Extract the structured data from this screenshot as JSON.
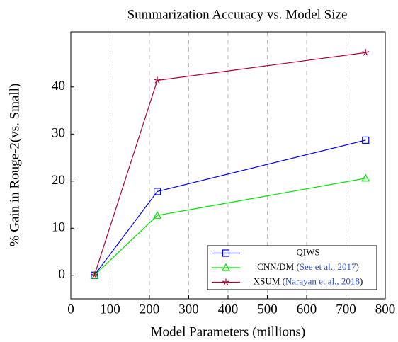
{
  "chart_data": {
    "type": "line",
    "title": "Summarization Accuracy vs. Model Size",
    "xlabel": "Model Parameters (millions)",
    "ylabel": "% Gain in Rouge-2(vs. Small)",
    "x": [
      60,
      220,
      750
    ],
    "series": [
      {
        "name": "QIWS",
        "color": "#0000ff",
        "marker": "square",
        "values": [
          0,
          17.8,
          28.7
        ]
      },
      {
        "name": "CNN/DM (See et al., 2017)",
        "color": "#00e000",
        "marker": "triangle",
        "values": [
          0,
          12.7,
          20.6
        ]
      },
      {
        "name": "XSUM (Narayan et al., 2018)",
        "color": "#b0003a",
        "marker": "star",
        "values": [
          0,
          41.4,
          47.3
        ]
      }
    ],
    "xlim": [
      0,
      800
    ],
    "xticks": [
      0,
      100,
      200,
      300,
      400,
      500,
      600,
      700,
      800
    ],
    "ylim": [
      -5,
      51.7
    ],
    "yticks": [
      0,
      10,
      20,
      30,
      40
    ],
    "grid": "x",
    "legend": "lower right"
  }
}
